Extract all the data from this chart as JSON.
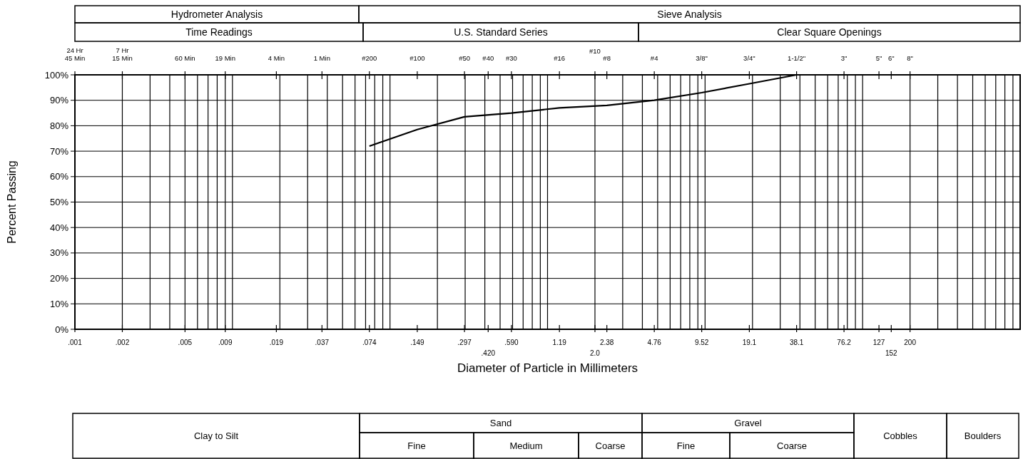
{
  "chart_data": {
    "type": "line",
    "xlabel": "Diameter of Particle in Millimeters",
    "ylabel": "Percent Passing",
    "log": "x",
    "grid": true,
    "xlim": [
      0.001,
      1000
    ],
    "ylim": [
      0,
      100
    ],
    "yticks": [
      {
        "value": 0,
        "label": "0%"
      },
      {
        "value": 10,
        "label": "10%"
      },
      {
        "value": 20,
        "label": "20%"
      },
      {
        "value": 30,
        "label": "30%"
      },
      {
        "value": 40,
        "label": "40%"
      },
      {
        "value": 50,
        "label": "50%"
      },
      {
        "value": 60,
        "label": "60%"
      },
      {
        "value": 70,
        "label": "70%"
      },
      {
        "value": 80,
        "label": "80%"
      },
      {
        "value": 90,
        "label": "90%"
      },
      {
        "value": 100,
        "label": "100%"
      }
    ],
    "xticks": [
      {
        "value": 0.001,
        "label": ".001"
      },
      {
        "value": 0.002,
        "label": ".002"
      },
      {
        "value": 0.005,
        "label": ".005"
      },
      {
        "value": 0.009,
        "label": ".009"
      },
      {
        "value": 0.019,
        "label": ".019"
      },
      {
        "value": 0.037,
        "label": ".037"
      },
      {
        "value": 0.074,
        "label": ".074"
      },
      {
        "value": 0.149,
        "label": ".149"
      },
      {
        "value": 0.297,
        "label": ".297"
      },
      {
        "value": 0.59,
        "label": ".590"
      },
      {
        "value": 0.42,
        "label": null
      },
      1.19,
      2.38,
      {
        "value": 2,
        "label": null
      },
      4.76,
      9.52,
      19.1,
      38.1,
      76.2,
      127,
      200,
      {
        "value": 152,
        "label": null
      }
    ],
    "series": [
      {
        "color": "#000000",
        "x": [
          0.074,
          0.149,
          0.297,
          0.59,
          1.19,
          2.38,
          4.76,
          9.52,
          19.1,
          38.1
        ],
        "values": [
          72,
          78.5,
          83.5,
          85,
          87,
          88,
          90,
          93,
          96.5,
          100
        ]
      }
    ],
    "annotations": [
      "Hydrometer Analysis",
      "Sieve Analysis",
      "Time Readings",
      "U.S. Standard Series",
      "Clear Square Openings",
      "Clay to Silt",
      "Sand",
      "Gravel",
      "Cobbles",
      "Boulders",
      "Fine",
      "Medium",
      "Coarse",
      "Fine",
      "Coarse",
      "24 Hr\n45 Min",
      "7 Hr\n15 Min",
      "60 Min",
      "19 Min",
      "4 Min",
      "1 Min",
      "#200",
      "#100",
      "#50",
      "#30",
      "#40",
      "#16",
      "#8",
      "#10",
      "#4",
      "3/8\"",
      "3/4\"",
      "1-1/2\"",
      "3\"",
      "5\"",
      "8\"",
      "6\"",
      ".420",
      "2.0",
      "152"
    ]
  }
}
